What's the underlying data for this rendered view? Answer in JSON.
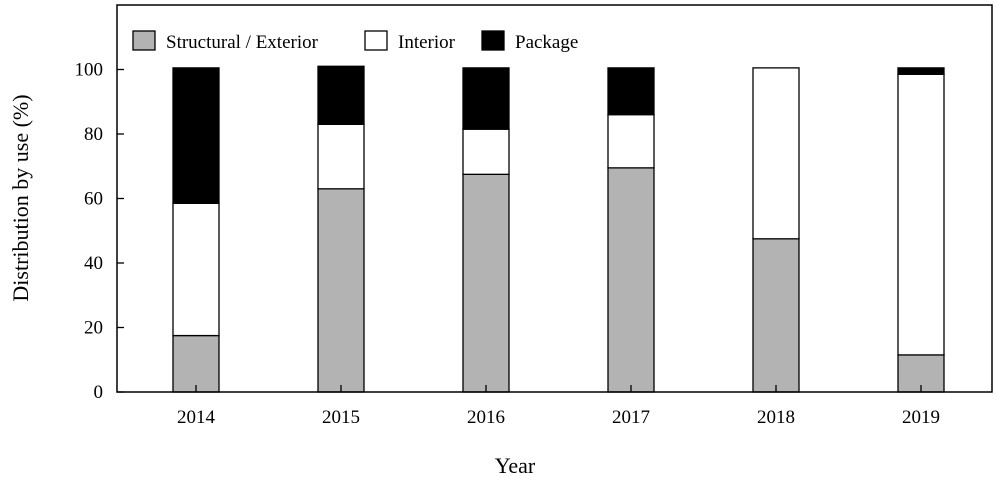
{
  "chart_data": {
    "type": "bar",
    "stacked": true,
    "title": "",
    "xlabel": "Year",
    "ylabel": "Distribution by use (%)",
    "ylim": [
      0,
      120
    ],
    "yticks": [
      0,
      20,
      40,
      60,
      80,
      100
    ],
    "categories": [
      "2014",
      "2015",
      "2016",
      "2017",
      "2018",
      "2019"
    ],
    "series": [
      {
        "name": "Structural / Exterior",
        "color": "#b3b3b3",
        "values": [
          17.5,
          63,
          67.5,
          69.5,
          47.5,
          11.5
        ]
      },
      {
        "name": "Interior",
        "color": "#ffffff",
        "values": [
          41,
          20,
          14,
          16.5,
          53,
          87
        ]
      },
      {
        "name": "Package",
        "color": "#000000",
        "values": [
          42,
          18,
          19,
          14.5,
          0,
          2
        ]
      }
    ],
    "legend_position": "top-left",
    "grid": false
  }
}
